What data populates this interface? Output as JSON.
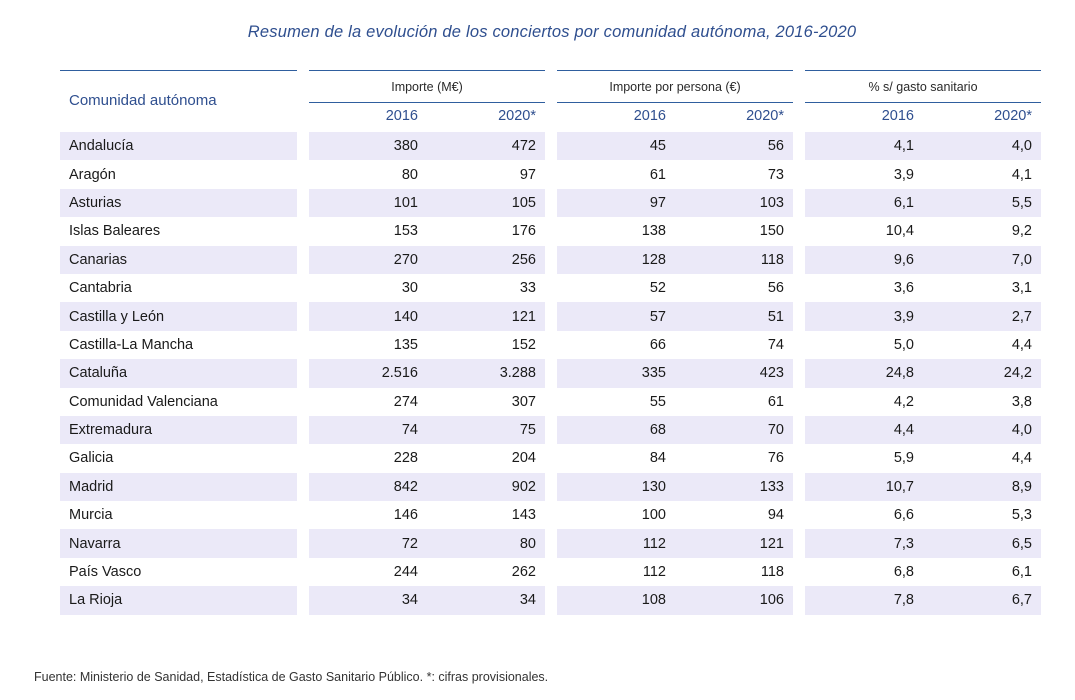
{
  "title": "Resumen de la evolución de los conciertos por comunidad autónoma, 2016-2020",
  "table": {
    "row_header": "Comunidad autónoma",
    "groups": [
      "Importe (M€)",
      "Importe por persona (€)",
      "% s/ gasto sanitario"
    ],
    "years": [
      "2016",
      "2020*"
    ],
    "rows": [
      {
        "name": "Andalucía",
        "values": [
          "380",
          "472",
          "45",
          "56",
          "4,1",
          "4,0"
        ]
      },
      {
        "name": "Aragón",
        "values": [
          "80",
          "97",
          "61",
          "73",
          "3,9",
          "4,1"
        ]
      },
      {
        "name": "Asturias",
        "values": [
          "101",
          "105",
          "97",
          "103",
          "6,1",
          "5,5"
        ]
      },
      {
        "name": "Islas Baleares",
        "values": [
          "153",
          "176",
          "138",
          "150",
          "10,4",
          "9,2"
        ]
      },
      {
        "name": "Canarias",
        "values": [
          "270",
          "256",
          "128",
          "118",
          "9,6",
          "7,0"
        ]
      },
      {
        "name": "Cantabria",
        "values": [
          "30",
          "33",
          "52",
          "56",
          "3,6",
          "3,1"
        ]
      },
      {
        "name": "Castilla y León",
        "values": [
          "140",
          "121",
          "57",
          "51",
          "3,9",
          "2,7"
        ]
      },
      {
        "name": "Castilla-La Mancha",
        "values": [
          "135",
          "152",
          "66",
          "74",
          "5,0",
          "4,4"
        ]
      },
      {
        "name": "Cataluña",
        "values": [
          "2.516",
          "3.288",
          "335",
          "423",
          "24,8",
          "24,2"
        ]
      },
      {
        "name": "Comunidad Valenciana",
        "values": [
          "274",
          "307",
          "55",
          "61",
          "4,2",
          "3,8"
        ]
      },
      {
        "name": "Extremadura",
        "values": [
          "74",
          "75",
          "68",
          "70",
          "4,4",
          "4,0"
        ]
      },
      {
        "name": "Galicia",
        "values": [
          "228",
          "204",
          "84",
          "76",
          "5,9",
          "4,4"
        ]
      },
      {
        "name": "Madrid",
        "values": [
          "842",
          "902",
          "130",
          "133",
          "10,7",
          "8,9"
        ]
      },
      {
        "name": "Murcia",
        "values": [
          "146",
          "143",
          "100",
          "94",
          "6,6",
          "5,3"
        ]
      },
      {
        "name": "Navarra",
        "values": [
          "72",
          "80",
          "112",
          "121",
          "7,3",
          "6,5"
        ]
      },
      {
        "name": "País Vasco",
        "values": [
          "244",
          "262",
          "112",
          "118",
          "6,8",
          "6,1"
        ]
      },
      {
        "name": "La Rioja",
        "values": [
          "34",
          "34",
          "108",
          "106",
          "7,8",
          "6,7"
        ]
      }
    ]
  },
  "footer": "Fuente: Ministerio de Sanidad, Estadística de Gasto Sanitario Público. *: cifras provisionales.",
  "colors": {
    "accent": "#2f4f8f",
    "rule": "#2f5e9e",
    "stripe": "#ebe9f8"
  }
}
